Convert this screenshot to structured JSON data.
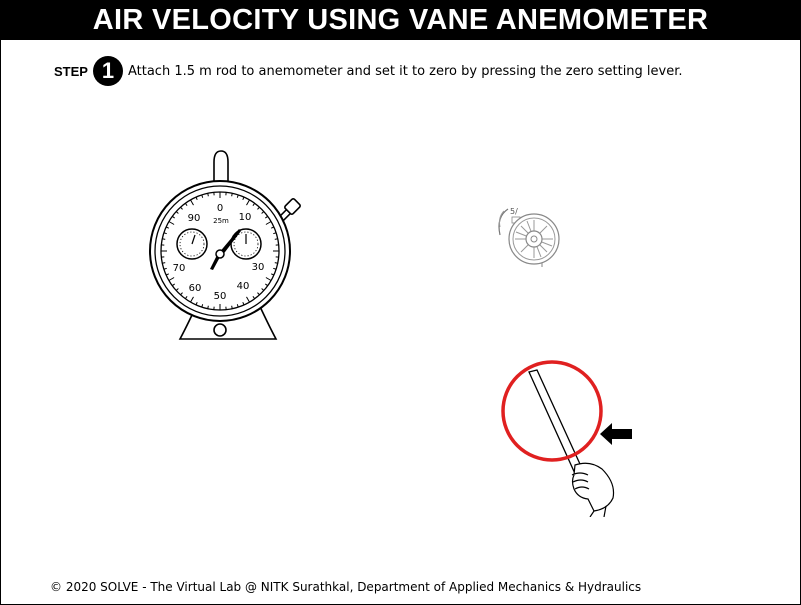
{
  "header": {
    "title": "AIR VELOCITY USING VANE ANEMOMETER"
  },
  "step": {
    "label": "STEP",
    "number": "1",
    "instruction": "Attach 1.5 m rod to anemometer and set it to zero by pressing the zero setting lever."
  },
  "stopwatch": {
    "dial_labels": [
      "0",
      "10",
      "30",
      "40",
      "50",
      "60",
      "70",
      "90"
    ],
    "center_label": "25m"
  },
  "anemometer": {
    "label": "5/"
  },
  "footer": {
    "text": "© 2020 SOLVE - The Virtual Lab @ NITK Surathkal, Department of Applied Mechanics & Hydraulics"
  },
  "colors": {
    "highlight": "#e02020",
    "title_bg": "#000000"
  },
  "icons": {
    "pointer": "arrow-left-icon"
  }
}
